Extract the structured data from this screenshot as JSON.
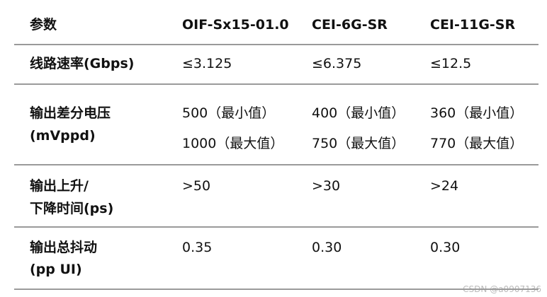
{
  "table": {
    "header": [
      "参数",
      "OIF-Sx15-01.0",
      "CEI-6G-SR",
      "CEI-11G-SR"
    ],
    "rows": [
      [
        [
          "线路速率(Gbps)"
        ],
        [
          "≤3.125"
        ],
        [
          "≤6.375"
        ],
        [
          "≤12.5"
        ]
      ],
      [
        [
          "输出差分电压",
          "(mVppd)"
        ],
        [
          "500（最小值）",
          "1000（最大值）"
        ],
        [
          "400（最小值）",
          "750（最大值）"
        ],
        [
          "360（最小值）",
          "770（最大值）"
        ]
      ],
      [
        [
          "输出上升/",
          "下降时间(ps)"
        ],
        [
          ">50"
        ],
        [
          ">30"
        ],
        [
          ">24"
        ]
      ],
      [
        [
          "输出总抖动",
          "(pp UI)"
        ],
        [
          "0.35"
        ],
        [
          "0.30"
        ],
        [
          "0.30"
        ]
      ]
    ]
  },
  "watermark": "CSDN @a0907136"
}
